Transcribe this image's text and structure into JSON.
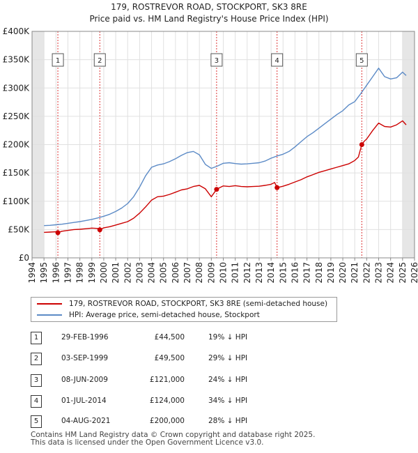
{
  "chart_data": {
    "type": "line",
    "title": "179, ROSTREVOR ROAD, STOCKPORT, SK3 8RE",
    "subtitle": "Price paid vs. HM Land Registry's House Price Index (HPI)",
    "xlim": [
      1994,
      2026
    ],
    "ylim": [
      0,
      400000
    ],
    "x_ticks": [
      "1994",
      "1995",
      "1996",
      "1997",
      "1998",
      "1999",
      "2000",
      "2001",
      "2002",
      "2003",
      "2004",
      "2005",
      "2006",
      "2007",
      "2008",
      "2009",
      "2010",
      "2011",
      "2012",
      "2013",
      "2014",
      "2015",
      "2016",
      "2017",
      "2018",
      "2019",
      "2020",
      "2021",
      "2022",
      "2023",
      "2024",
      "2025",
      "2026"
    ],
    "y_ticks": [
      {
        "value": 0,
        "label": "£0"
      },
      {
        "value": 50000,
        "label": "£50K"
      },
      {
        "value": 100000,
        "label": "£100K"
      },
      {
        "value": 150000,
        "label": "£150K"
      },
      {
        "value": 200000,
        "label": "£200K"
      },
      {
        "value": 250000,
        "label": "£250K"
      },
      {
        "value": 300000,
        "label": "£300K"
      },
      {
        "value": 350000,
        "label": "£350K"
      },
      {
        "value": 400000,
        "label": "£400K"
      }
    ],
    "series": [
      {
        "name": "179, ROSTREVOR ROAD, STOCKPORT, SK3 8RE (semi-detached house)",
        "color": "#cc0000",
        "x": [
          1995.0,
          1995.5,
          1996.0,
          1996.16,
          1996.5,
          1997.0,
          1997.5,
          1998.0,
          1998.5,
          1999.0,
          1999.5,
          1999.67,
          2000.0,
          2000.5,
          2001.0,
          2001.5,
          2002.0,
          2002.5,
          2003.0,
          2003.5,
          2004.0,
          2004.5,
          2005.0,
          2005.5,
          2006.0,
          2006.5,
          2007.0,
          2007.5,
          2008.0,
          2008.5,
          2009.0,
          2009.44,
          2009.7,
          2010.0,
          2010.5,
          2011.0,
          2011.5,
          2012.0,
          2012.5,
          2013.0,
          2013.5,
          2014.0,
          2014.3,
          2014.5,
          2015.0,
          2015.5,
          2016.0,
          2016.5,
          2017.0,
          2017.5,
          2018.0,
          2018.5,
          2019.0,
          2019.5,
          2020.0,
          2020.5,
          2021.0,
          2021.3,
          2021.59,
          2021.8,
          2022.0,
          2022.5,
          2023.0,
          2023.5,
          2024.0,
          2024.5,
          2025.0,
          2025.3
        ],
        "values": [
          45000,
          45500,
          46000,
          44500,
          47000,
          48500,
          50000,
          50500,
          51500,
          52500,
          52000,
          49500,
          53000,
          55000,
          58000,
          61000,
          64000,
          70000,
          79000,
          90000,
          102000,
          108000,
          109000,
          112000,
          116000,
          120000,
          122000,
          126000,
          128000,
          122000,
          108000,
          121000,
          124000,
          127000,
          126000,
          127500,
          126000,
          125500,
          126000,
          126500,
          128000,
          130000,
          133000,
          124000,
          126500,
          130000,
          134000,
          138000,
          143000,
          147000,
          151000,
          154000,
          157000,
          160000,
          163000,
          166000,
          172000,
          178000,
          200000,
          206000,
          210000,
          225000,
          238000,
          232000,
          231000,
          235000,
          242000,
          235000
        ]
      },
      {
        "name": "HPI: Average price, semi-detached house, Stockport",
        "color": "#5b8ac6",
        "x": [
          1995.0,
          1995.5,
          1996.0,
          1996.5,
          1997.0,
          1997.5,
          1998.0,
          1998.5,
          1999.0,
          1999.5,
          2000.0,
          2000.5,
          2001.0,
          2001.5,
          2002.0,
          2002.5,
          2003.0,
          2003.5,
          2004.0,
          2004.5,
          2005.0,
          2005.5,
          2006.0,
          2006.5,
          2007.0,
          2007.5,
          2008.0,
          2008.5,
          2009.0,
          2009.5,
          2010.0,
          2010.5,
          2011.0,
          2011.5,
          2012.0,
          2012.5,
          2013.0,
          2013.5,
          2014.0,
          2014.5,
          2015.0,
          2015.5,
          2016.0,
          2016.5,
          2017.0,
          2017.5,
          2018.0,
          2018.5,
          2019.0,
          2019.5,
          2020.0,
          2020.5,
          2021.0,
          2021.5,
          2022.0,
          2022.5,
          2023.0,
          2023.5,
          2024.0,
          2024.5,
          2025.0,
          2025.3
        ],
        "values": [
          57000,
          57500,
          58500,
          59500,
          61000,
          62500,
          64000,
          66000,
          68000,
          70500,
          73500,
          77000,
          82000,
          88000,
          96000,
          108000,
          125000,
          145000,
          160000,
          164000,
          166000,
          170000,
          175000,
          181000,
          186000,
          188000,
          182000,
          165000,
          158000,
          162000,
          167000,
          168000,
          166500,
          165500,
          166000,
          167000,
          168000,
          171000,
          176000,
          180000,
          183000,
          188000,
          196000,
          205000,
          214000,
          221000,
          229000,
          237000,
          245000,
          253000,
          260000,
          270000,
          276000,
          290000,
          305000,
          320000,
          335000,
          320000,
          316000,
          318000,
          328000,
          322000
        ]
      }
    ],
    "sales": [
      {
        "label": "1",
        "x": 1996.16,
        "price": 44500
      },
      {
        "label": "2",
        "x": 1999.67,
        "price": 49500
      },
      {
        "label": "3",
        "x": 2009.44,
        "price": 121000
      },
      {
        "label": "4",
        "x": 2014.5,
        "price": 124000
      },
      {
        "label": "5",
        "x": 2021.59,
        "price": 200000
      }
    ]
  },
  "legend": {
    "items": [
      {
        "label": "179, ROSTREVOR ROAD, STOCKPORT, SK3 8RE (semi-detached house)",
        "color": "#cc0000"
      },
      {
        "label": "HPI: Average price, semi-detached house, Stockport",
        "color": "#5b8ac6"
      }
    ]
  },
  "transactions": [
    {
      "num": "1",
      "date": "29-FEB-1996",
      "price": "£44,500",
      "hpi": "19% ↓ HPI"
    },
    {
      "num": "2",
      "date": "03-SEP-1999",
      "price": "£49,500",
      "hpi": "29% ↓ HPI"
    },
    {
      "num": "3",
      "date": "08-JUN-2009",
      "price": "£121,000",
      "hpi": "24% ↓ HPI"
    },
    {
      "num": "4",
      "date": "01-JUL-2014",
      "price": "£124,000",
      "hpi": "34% ↓ HPI"
    },
    {
      "num": "5",
      "date": "04-AUG-2021",
      "price": "£200,000",
      "hpi": "28% ↓ HPI"
    }
  ],
  "footer": {
    "line1": "Contains HM Land Registry data © Crown copyright and database right 2025.",
    "line2": "This data is licensed under the Open Government Licence v3.0."
  }
}
